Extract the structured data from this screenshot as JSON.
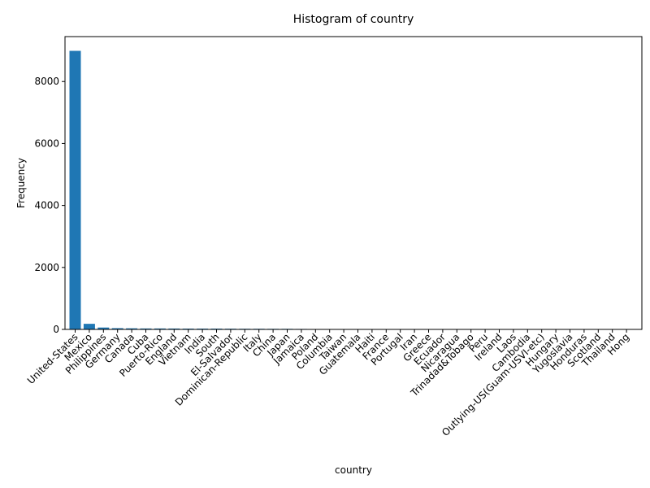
{
  "chart_data": {
    "type": "bar",
    "title": "Histogram of country",
    "xlabel": "country",
    "ylabel": "Frequency",
    "ylim": [
      0,
      9450
    ],
    "yticks": [
      0,
      2000,
      4000,
      6000,
      8000
    ],
    "grid": false,
    "bar_color": "#1f77b4",
    "categories": [
      "United-States",
      "Mexico",
      "Philippines",
      "Germany",
      "Canada",
      "Cuba",
      "Puerto-Rico",
      "England",
      "Vietnam",
      "India",
      "South",
      "El-Salvador",
      "Dominican-Republic",
      "Italy",
      "China",
      "Japan",
      "Jamaica",
      "Poland",
      "Columbia",
      "Taiwan",
      "Guatemala",
      "Haiti",
      "France",
      "Portugal",
      "Iran",
      "Greece",
      "Ecuador",
      "Nicaragua",
      "Trinadad&Tobago",
      "Peru",
      "Ireland",
      "Laos",
      "Cambodia",
      "Outlying-US(Guam-USVI-etc)",
      "Hungary",
      "Yugoslavia",
      "Honduras",
      "Scotland",
      "Thailand",
      "Hong"
    ],
    "values": [
      8990,
      180,
      60,
      40,
      35,
      30,
      30,
      28,
      25,
      25,
      25,
      22,
      20,
      20,
      18,
      18,
      15,
      12,
      10,
      10,
      10,
      9,
      8,
      8,
      8,
      7,
      7,
      7,
      6,
      5,
      5,
      5,
      4,
      3,
      3,
      3,
      3,
      2,
      2,
      2
    ]
  }
}
